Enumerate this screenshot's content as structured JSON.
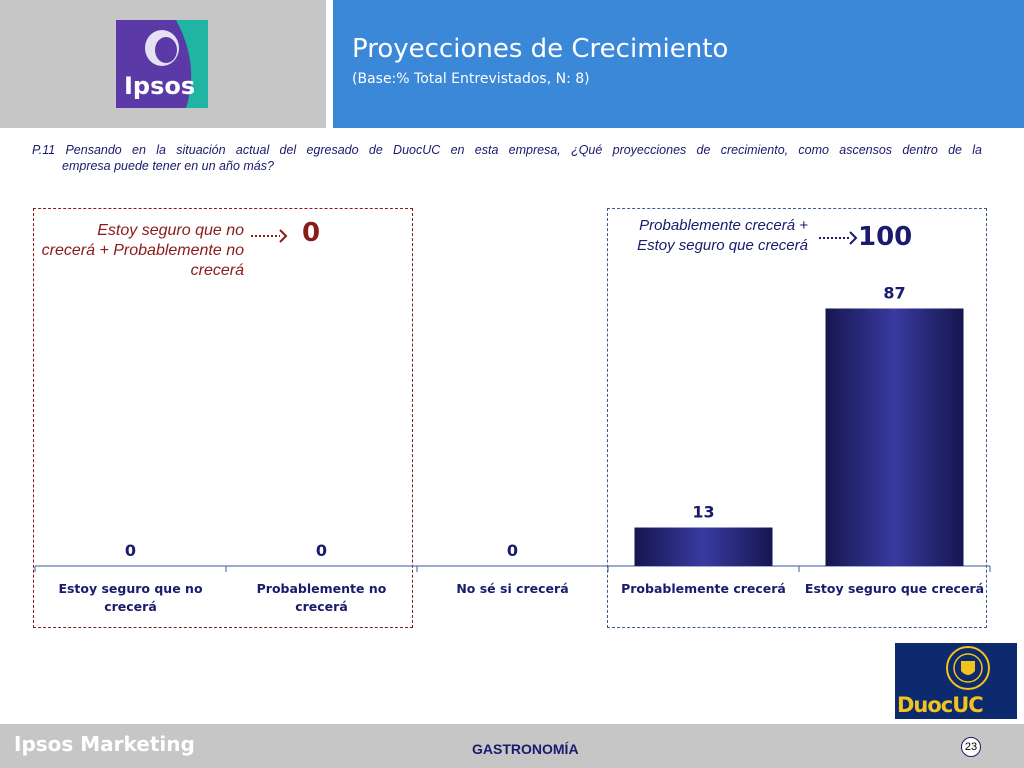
{
  "header": {
    "title": "Proyecciones de Crecimiento",
    "subtitle": "(Base:% Total Entrevistados, N: 8)",
    "logo_text": "Ipsos"
  },
  "question": {
    "line1": "P.11 Pensando en la situación actual del egresado de DuocUC en esta empresa, ¿Qué proyecciones de crecimiento, como ascensos dentro de la",
    "line2": "empresa puede tener en un año más?"
  },
  "notes": {
    "left_label": "Estoy seguro que no crecerá + Probablemente no crecerá",
    "left_total": "0",
    "right_label": "Probablemente crecerá + Estoy seguro que crecerá",
    "right_total": "100"
  },
  "chart_data": {
    "type": "bar",
    "categories": [
      "Estoy seguro que no crecerá",
      "Probablemente no crecerá",
      "No sé si crecerá",
      "Probablemente crecerá",
      "Estoy seguro que crecerá"
    ],
    "values": [
      0,
      0,
      0,
      13,
      87
    ],
    "ylim": [
      0,
      100
    ],
    "grid": false,
    "legend": "none",
    "title": "",
    "xlabel": "",
    "ylabel": ""
  },
  "colors": {
    "bar_edge": "#161650",
    "bar_center": "#3a3aa0",
    "value_label": "#1a1a6e",
    "accent_red": "#8b1a1a",
    "accent_blue": "#3b87d8",
    "footer_gray": "#c6c6c6"
  },
  "footer": {
    "brand": "Ipsos Marketing",
    "section": "GASTRONOMÍA",
    "page": "23",
    "partner_logo_text": "DuocUC"
  },
  "icons": {
    "ipsos_logo": "ipsos-logo",
    "duoc_logo": "duocuc-logo",
    "arrow": "dotted-arrow-icon"
  }
}
